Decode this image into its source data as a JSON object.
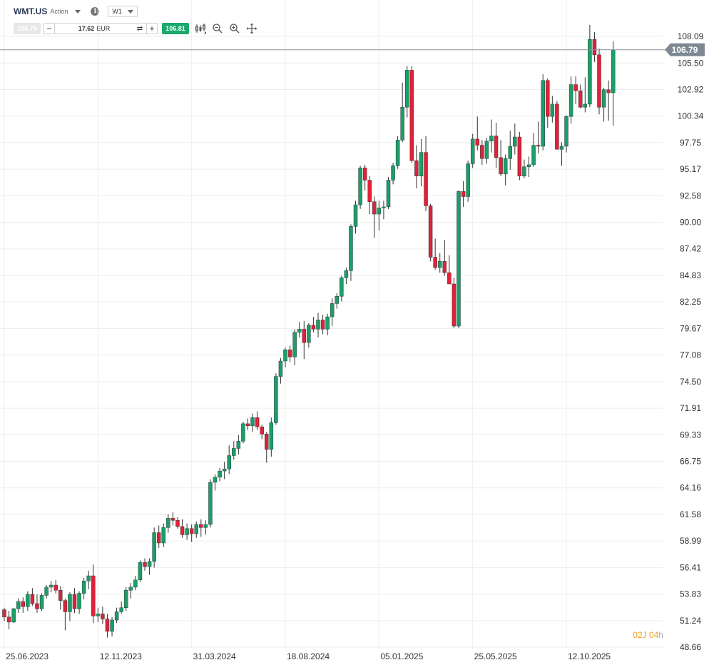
{
  "header": {
    "symbol": "WMT.US",
    "instrument_type": "Action",
    "timeframe": "W1"
  },
  "trade": {
    "bid": "106.79",
    "quantity": "17.62",
    "unit": "EUR",
    "ask": "106.81"
  },
  "price_tag": "106.79",
  "countdown": {
    "value": "02J 04",
    "suffix": "h"
  },
  "icons": [
    "chevron-down-icon",
    "info-icon",
    "swap-icon",
    "candlestick-type-icon",
    "zoom-out-icon",
    "zoom-in-icon",
    "move-icon"
  ],
  "colors": {
    "up": "#1b9e6a",
    "down": "#e0213a",
    "accent": "#1ba86b",
    "price_tag": "#7d8894",
    "countdown": "#f0a019"
  },
  "chart_data": {
    "type": "candlestick",
    "title": "",
    "xlabel": "",
    "ylabel": "",
    "ylim": [
      48.66,
      109.4
    ],
    "y_ticks": [
      "108.09",
      "105.50",
      "102.92",
      "100.34",
      "97.75",
      "95.17",
      "92.58",
      "90.00",
      "87.42",
      "84.83",
      "82.25",
      "79.67",
      "77.08",
      "74.50",
      "71.91",
      "69.33",
      "66.75",
      "64.16",
      "61.58",
      "58.99",
      "56.41",
      "53.83",
      "51.24",
      "48.66"
    ],
    "x_ticks": [
      {
        "label": "25.06.2023",
        "index": 0
      },
      {
        "label": "12.11.2023",
        "index": 20
      },
      {
        "label": "31.03.2024",
        "index": 40
      },
      {
        "label": "18.08.2024",
        "index": 60
      },
      {
        "label": "05.01.2025",
        "index": 80
      },
      {
        "label": "25.05.2025",
        "index": 100
      },
      {
        "label": "12.10.2025",
        "index": 120
      }
    ],
    "last_price": 106.79,
    "candles": [
      [
        52.3,
        52.5,
        51.2,
        51.6
      ],
      [
        51.6,
        52.2,
        50.4,
        51.1
      ],
      [
        51.1,
        52.5,
        51.0,
        52.4
      ],
      [
        52.4,
        53.4,
        52.0,
        53.1
      ],
      [
        53.1,
        53.5,
        52.0,
        52.6
      ],
      [
        52.6,
        54.1,
        52.2,
        53.8
      ],
      [
        53.8,
        54.4,
        52.7,
        52.9
      ],
      [
        52.9,
        53.8,
        52.0,
        52.4
      ],
      [
        52.4,
        53.9,
        52.2,
        53.7
      ],
      [
        53.7,
        54.7,
        53.4,
        54.5
      ],
      [
        54.5,
        55.1,
        54.0,
        54.7
      ],
      [
        54.7,
        55.2,
        53.9,
        54.2
      ],
      [
        54.2,
        54.6,
        52.3,
        53.2
      ],
      [
        53.2,
        53.4,
        50.3,
        52.1
      ],
      [
        52.1,
        54.0,
        51.2,
        53.8
      ],
      [
        53.8,
        54.4,
        52.0,
        52.4
      ],
      [
        52.4,
        54.1,
        51.9,
        53.9
      ],
      [
        53.9,
        55.4,
        53.3,
        55.1
      ],
      [
        55.1,
        56.1,
        54.3,
        55.6
      ],
      [
        55.6,
        56.7,
        51.0,
        51.7
      ],
      [
        51.7,
        52.5,
        51.1,
        51.9
      ],
      [
        51.9,
        52.6,
        50.9,
        51.4
      ],
      [
        51.4,
        51.9,
        49.6,
        50.2
      ],
      [
        50.2,
        51.6,
        49.7,
        51.3
      ],
      [
        51.3,
        52.5,
        51.0,
        52.1
      ],
      [
        52.1,
        53.1,
        51.9,
        52.5
      ],
      [
        52.5,
        54.5,
        52.2,
        54.2
      ],
      [
        54.2,
        54.9,
        53.4,
        54.5
      ],
      [
        54.5,
        55.6,
        54.2,
        55.2
      ],
      [
        55.2,
        57.1,
        55.0,
        56.9
      ],
      [
        56.9,
        57.3,
        56.1,
        56.5
      ],
      [
        56.5,
        57.3,
        55.7,
        57.0
      ],
      [
        57.0,
        60.3,
        56.4,
        59.8
      ],
      [
        59.8,
        60.5,
        58.3,
        58.8
      ],
      [
        58.8,
        60.7,
        58.4,
        60.3
      ],
      [
        60.3,
        61.6,
        59.8,
        61.2
      ],
      [
        61.2,
        61.8,
        60.5,
        61.0
      ],
      [
        61.0,
        61.3,
        60.2,
        60.4
      ],
      [
        60.4,
        61.1,
        59.3,
        59.6
      ],
      [
        59.6,
        60.7,
        59.1,
        60.2
      ],
      [
        60.2,
        60.6,
        58.9,
        59.7
      ],
      [
        59.7,
        60.9,
        59.3,
        60.6
      ],
      [
        60.6,
        61.1,
        59.4,
        60.3
      ],
      [
        60.3,
        61.0,
        59.6,
        60.6
      ],
      [
        60.6,
        65.0,
        60.3,
        64.7
      ],
      [
        64.7,
        65.5,
        63.9,
        65.2
      ],
      [
        65.2,
        66.1,
        64.8,
        65.8
      ],
      [
        65.8,
        66.7,
        65.0,
        66.0
      ],
      [
        66.0,
        68.3,
        65.5,
        67.3
      ],
      [
        67.3,
        68.7,
        66.9,
        68.0
      ],
      [
        68.0,
        69.3,
        67.4,
        68.7
      ],
      [
        68.7,
        70.6,
        68.5,
        70.4
      ],
      [
        70.4,
        70.9,
        69.8,
        70.2
      ],
      [
        70.2,
        71.4,
        69.6,
        71.0
      ],
      [
        71.0,
        71.6,
        69.8,
        70.1
      ],
      [
        70.1,
        70.3,
        68.9,
        69.4
      ],
      [
        69.4,
        69.6,
        66.6,
        67.9
      ],
      [
        67.9,
        71.0,
        67.2,
        70.5
      ],
      [
        70.5,
        75.3,
        70.3,
        75.0
      ],
      [
        75.0,
        76.8,
        74.3,
        76.5
      ],
      [
        76.5,
        77.8,
        75.9,
        77.6
      ],
      [
        77.6,
        78.0,
        76.4,
        76.9
      ],
      [
        76.9,
        79.6,
        76.1,
        79.3
      ],
      [
        79.3,
        80.3,
        78.8,
        79.6
      ],
      [
        79.6,
        80.4,
        76.7,
        78.3
      ],
      [
        78.3,
        80.2,
        77.8,
        80.0
      ],
      [
        80.0,
        80.8,
        79.3,
        79.6
      ],
      [
        79.6,
        81.2,
        78.8,
        80.5
      ],
      [
        80.5,
        81.0,
        79.1,
        79.6
      ],
      [
        79.6,
        81.1,
        79.0,
        80.8
      ],
      [
        80.8,
        82.6,
        79.9,
        82.1
      ],
      [
        82.1,
        83.1,
        81.6,
        82.8
      ],
      [
        82.8,
        84.8,
        82.3,
        84.6
      ],
      [
        84.6,
        85.6,
        84.0,
        85.3
      ],
      [
        85.3,
        89.8,
        84.3,
        89.6
      ],
      [
        89.6,
        92.1,
        88.9,
        91.7
      ],
      [
        91.7,
        95.5,
        91.3,
        95.3
      ],
      [
        95.3,
        95.6,
        93.1,
        94.1
      ],
      [
        94.1,
        94.5,
        90.8,
        92.0
      ],
      [
        92.0,
        92.5,
        88.5,
        90.8
      ],
      [
        90.8,
        92.1,
        89.2,
        91.4
      ],
      [
        91.4,
        92.1,
        90.3,
        91.5
      ],
      [
        91.5,
        94.4,
        91.3,
        94.1
      ],
      [
        94.1,
        95.8,
        93.7,
        95.5
      ],
      [
        95.5,
        98.4,
        95.2,
        98.0
      ],
      [
        98.0,
        103.6,
        97.8,
        101.2
      ],
      [
        101.2,
        105.2,
        100.2,
        104.8
      ],
      [
        104.8,
        105.2,
        95.8,
        96.0
      ],
      [
        96.0,
        97.5,
        93.3,
        94.5
      ],
      [
        94.5,
        98.1,
        93.5,
        96.8
      ],
      [
        96.8,
        98.4,
        91.1,
        91.6
      ],
      [
        91.6,
        91.8,
        86.2,
        86.6
      ],
      [
        86.6,
        88.4,
        85.4,
        85.6
      ],
      [
        85.6,
        87.0,
        85.1,
        86.2
      ],
      [
        86.2,
        88.3,
        84.8,
        85.1
      ],
      [
        85.1,
        86.8,
        84.0,
        84.0
      ],
      [
        84.0,
        84.6,
        79.7,
        79.9
      ],
      [
        79.9,
        93.1,
        79.7,
        93.0
      ],
      [
        93.0,
        94.0,
        91.5,
        92.5
      ],
      [
        92.5,
        96.0,
        92.0,
        95.7
      ],
      [
        95.7,
        98.6,
        95.3,
        98.1
      ],
      [
        98.1,
        100.3,
        97.0,
        97.5
      ],
      [
        97.5,
        98.0,
        95.6,
        96.2
      ],
      [
        96.2,
        98.2,
        95.7,
        97.9
      ],
      [
        97.9,
        100.0,
        96.8,
        98.4
      ],
      [
        98.4,
        99.7,
        95.3,
        96.3
      ],
      [
        96.3,
        98.0,
        94.5,
        94.7
      ],
      [
        94.7,
        96.6,
        93.6,
        96.2
      ],
      [
        96.2,
        98.9,
        95.1,
        97.4
      ],
      [
        97.4,
        99.6,
        96.6,
        98.3
      ],
      [
        98.3,
        98.8,
        94.1,
        94.5
      ],
      [
        94.5,
        96.1,
        94.3,
        95.4
      ],
      [
        95.4,
        96.4,
        94.4,
        95.6
      ],
      [
        95.6,
        98.7,
        95.4,
        97.5
      ],
      [
        97.5,
        99.8,
        96.7,
        97.4
      ],
      [
        97.4,
        104.4,
        97.0,
        103.8
      ],
      [
        103.8,
        104.0,
        99.2,
        100.3
      ],
      [
        100.3,
        102.3,
        99.7,
        101.5
      ],
      [
        101.5,
        101.8,
        97.4,
        97.1
      ],
      [
        97.1,
        97.8,
        95.5,
        97.4
      ],
      [
        97.4,
        100.4,
        96.8,
        100.3
      ],
      [
        100.3,
        104.2,
        99.6,
        103.4
      ],
      [
        103.4,
        104.2,
        101.5,
        102.8
      ],
      [
        102.8,
        103.4,
        101.1,
        101.2
      ],
      [
        101.2,
        104.1,
        100.7,
        101.5
      ],
      [
        101.5,
        109.2,
        101.2,
        107.8
      ],
      [
        107.8,
        108.5,
        105.6,
        106.3
      ],
      [
        106.3,
        106.9,
        100.5,
        101.2
      ],
      [
        101.2,
        103.1,
        99.8,
        102.9
      ],
      [
        102.9,
        103.8,
        99.9,
        102.6
      ],
      [
        102.6,
        107.6,
        99.4,
        106.79
      ]
    ]
  }
}
